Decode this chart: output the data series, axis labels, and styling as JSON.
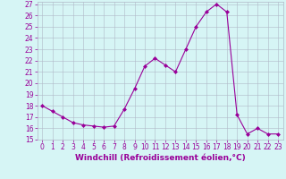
{
  "x": [
    0,
    1,
    2,
    3,
    4,
    5,
    6,
    7,
    8,
    9,
    10,
    11,
    12,
    13,
    14,
    15,
    16,
    17,
    18,
    19,
    20,
    21,
    22,
    23
  ],
  "y": [
    18.0,
    17.5,
    17.0,
    16.5,
    16.3,
    16.2,
    16.1,
    16.2,
    17.7,
    19.5,
    21.5,
    22.2,
    21.6,
    21.0,
    23.0,
    25.0,
    26.3,
    27.0,
    26.3,
    17.2,
    15.5,
    16.0,
    15.5,
    15.5
  ],
  "line_color": "#990099",
  "marker": "D",
  "marker_size": 2.0,
  "bg_color": "#d6f5f5",
  "grid_color": "#b0b8c8",
  "xlabel": "Windchill (Refroidissement éolien,°C)",
  "ylim": [
    15,
    27
  ],
  "xlim": [
    -0.5,
    23.5
  ],
  "yticks": [
    15,
    16,
    17,
    18,
    19,
    20,
    21,
    22,
    23,
    24,
    25,
    26,
    27
  ],
  "xticks": [
    0,
    1,
    2,
    3,
    4,
    5,
    6,
    7,
    8,
    9,
    10,
    11,
    12,
    13,
    14,
    15,
    16,
    17,
    18,
    19,
    20,
    21,
    22,
    23
  ],
  "tick_fontsize": 5.5,
  "xlabel_fontsize": 6.5,
  "label_color": "#990099",
  "linewidth": 0.8
}
